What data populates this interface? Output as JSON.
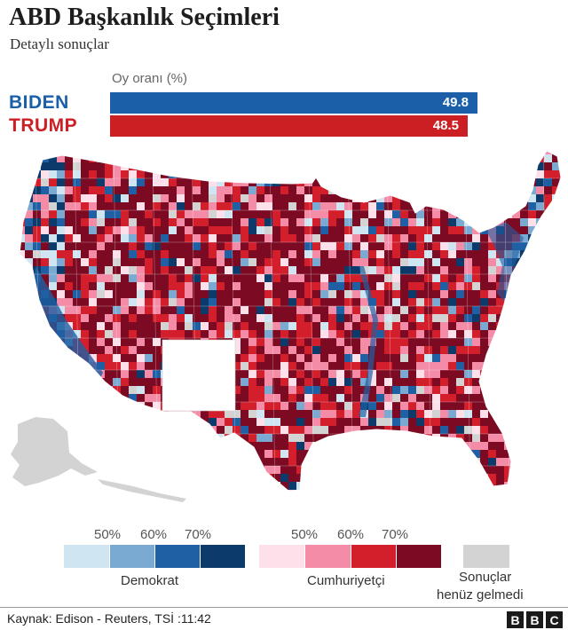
{
  "header": {
    "title": "ABD Başkanlık Seçimleri",
    "subtitle": "Detaylı sonuçlar"
  },
  "vote_bar": {
    "heading": "Oy oranı (%)",
    "candidates": [
      {
        "name": "BIDEN",
        "value": 49.8,
        "value_label": "49.8",
        "color": "#1a5fa8"
      },
      {
        "name": "TRUMP",
        "value": 48.5,
        "value_label": "48.5",
        "color": "#cc1f24"
      }
    ]
  },
  "legend": {
    "democrat": {
      "label": "Demokrat",
      "ticks": [
        "50%",
        "60%",
        "70%"
      ],
      "colors": [
        "#cfe6f2",
        "#7aa9d1",
        "#1f5fa3",
        "#0b3a6b"
      ]
    },
    "republican": {
      "label": "Cumhuriyetçi",
      "ticks": [
        "50%",
        "60%",
        "70%"
      ],
      "colors": [
        "#fde0ea",
        "#f48ca8",
        "#d31f2b",
        "#7b0a22"
      ]
    },
    "no_results": {
      "label_line1": "Sonuçlar",
      "label_line2": "henüz gelmedi",
      "color": "#d3d3d3"
    }
  },
  "footer": {
    "source": "Kaynak: Edison - Reuters, TSİ :11:42",
    "logo": [
      "B",
      "B",
      "C"
    ]
  }
}
